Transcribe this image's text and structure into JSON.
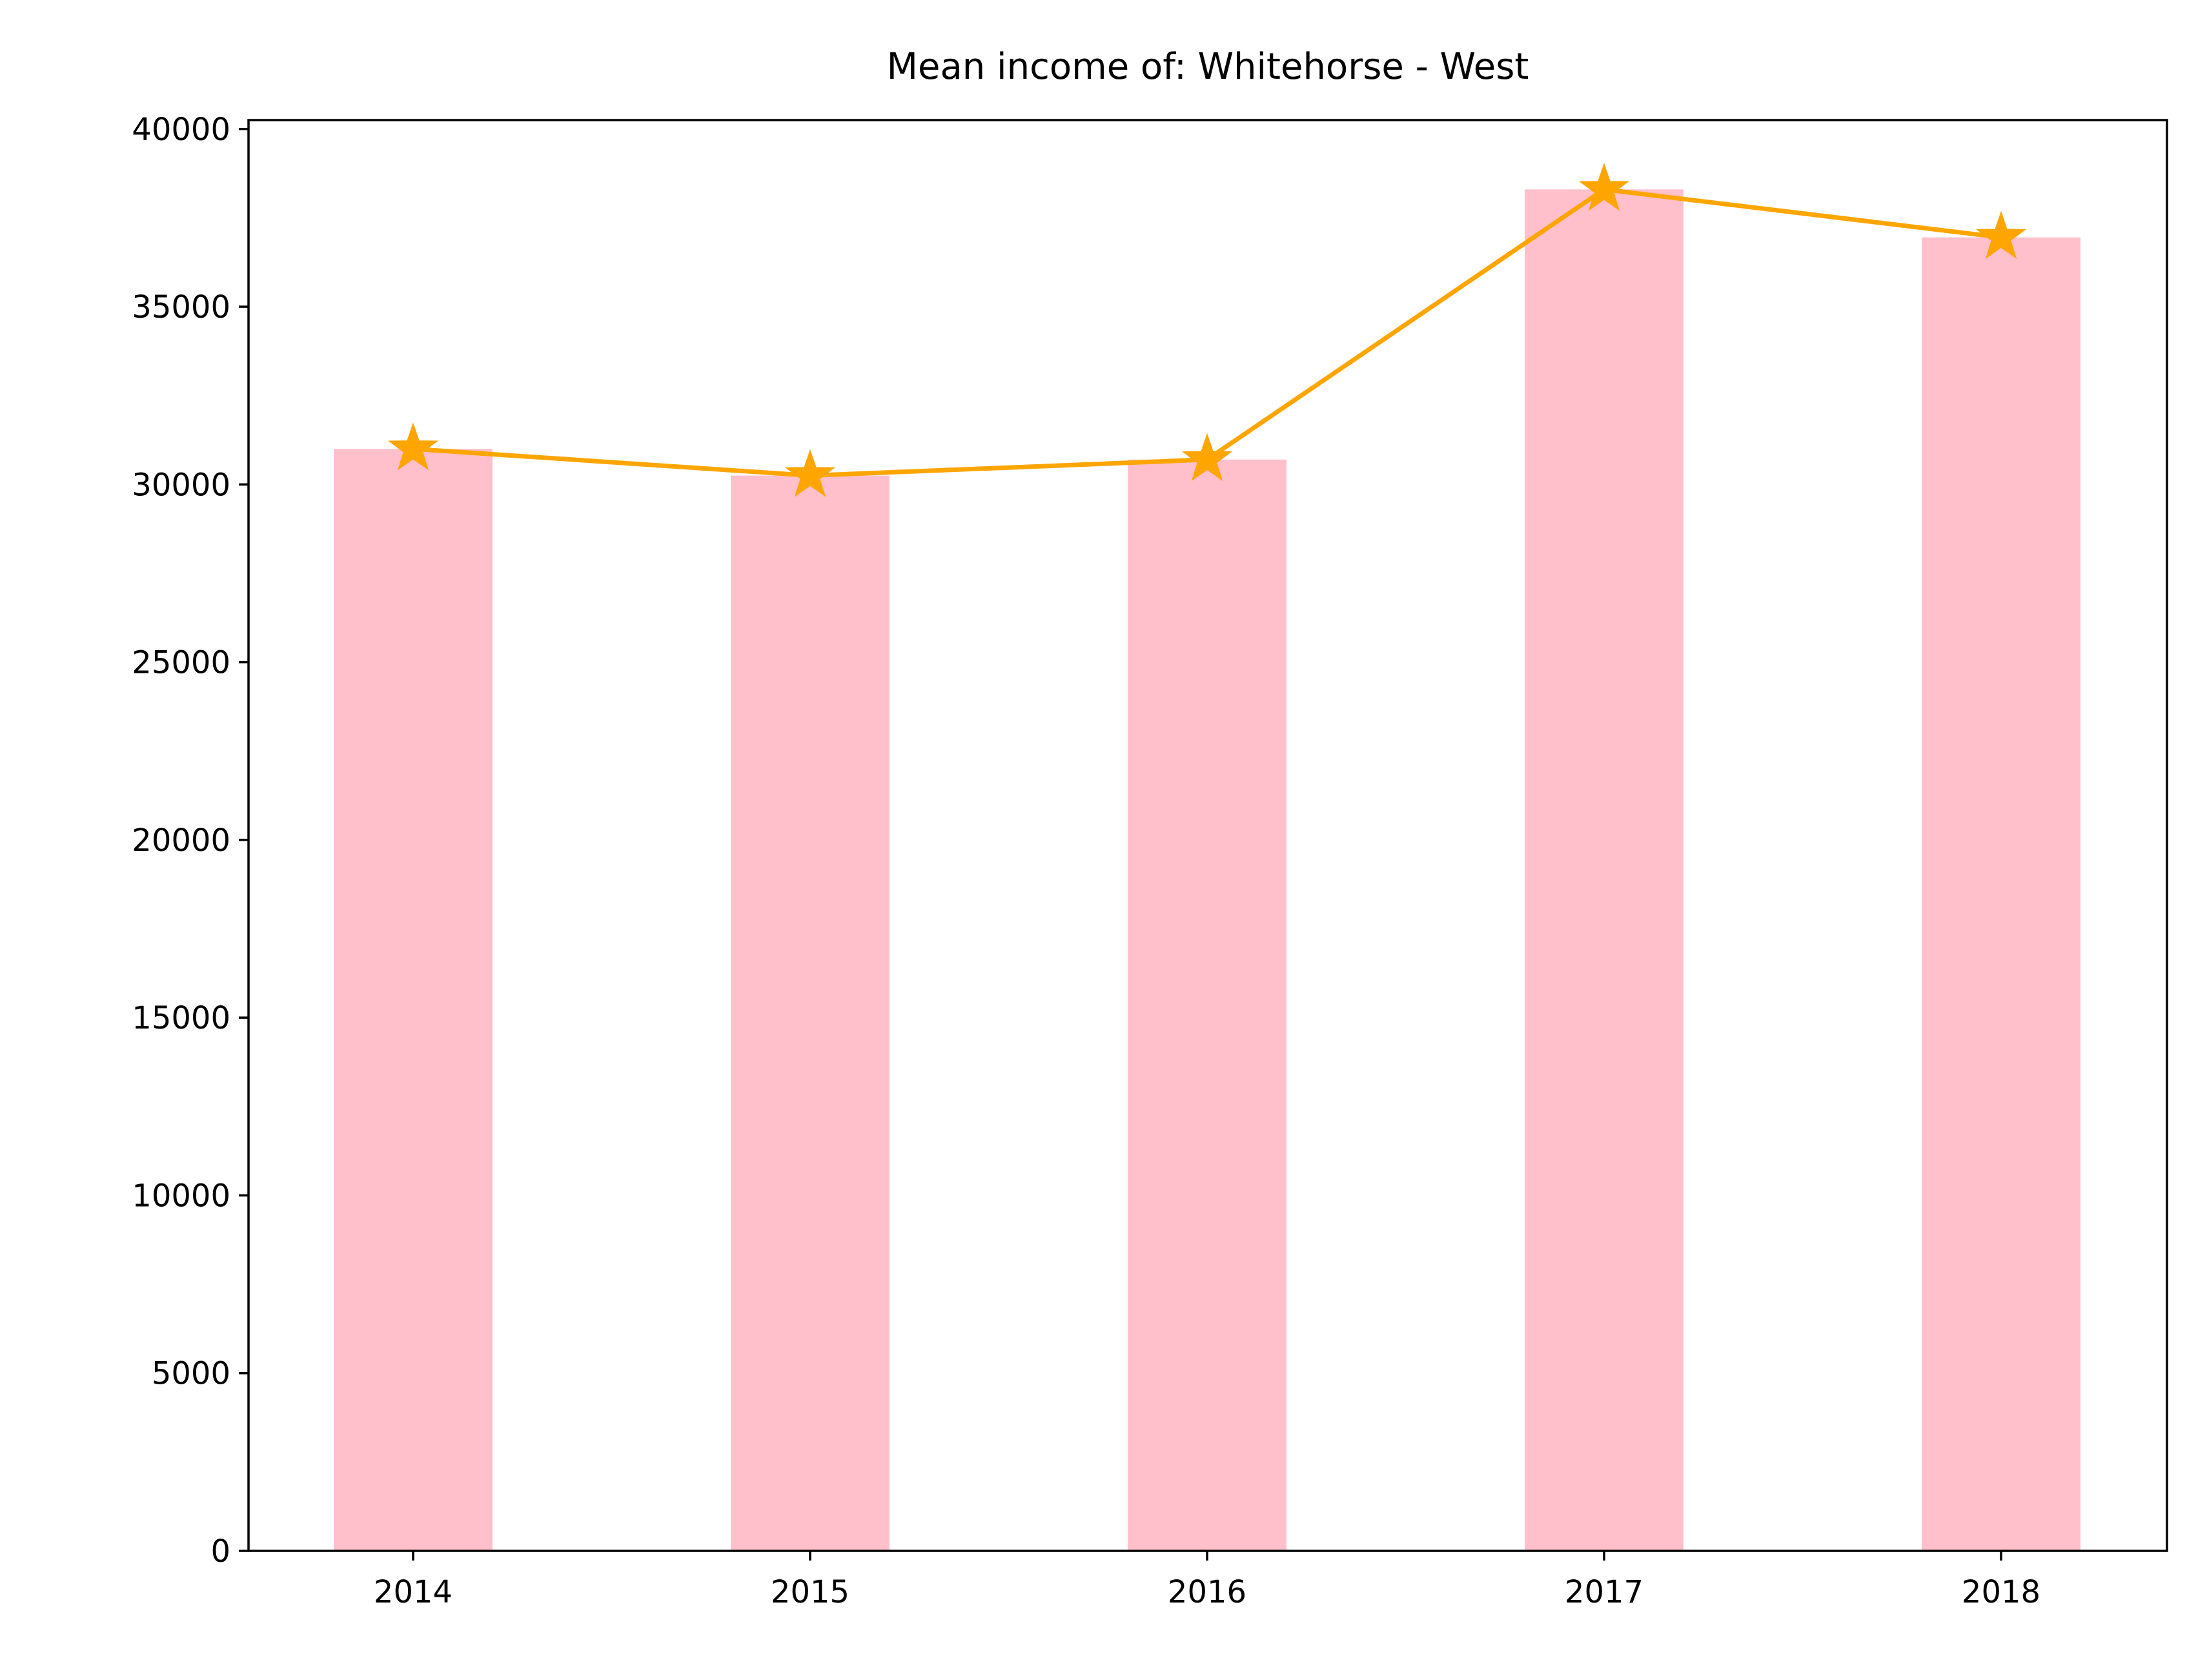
{
  "chart_data": {
    "type": "bar",
    "title": "Mean income of: Whitehorse - West",
    "xlabel": "",
    "ylabel": "",
    "categories": [
      "2014",
      "2015",
      "2016",
      "2017",
      "2018"
    ],
    "values": [
      31000,
      30250,
      30700,
      38300,
      36950
    ],
    "line_values": [
      31000,
      30250,
      30700,
      38300,
      36950
    ],
    "ylim": [
      0,
      40250
    ],
    "yticks": [
      0,
      5000,
      10000,
      15000,
      20000,
      25000,
      30000,
      35000,
      40000
    ],
    "grid": false,
    "legend": "none",
    "bar_color": "#ffc0cb",
    "line_color": "#ffa500",
    "marker": "star"
  }
}
